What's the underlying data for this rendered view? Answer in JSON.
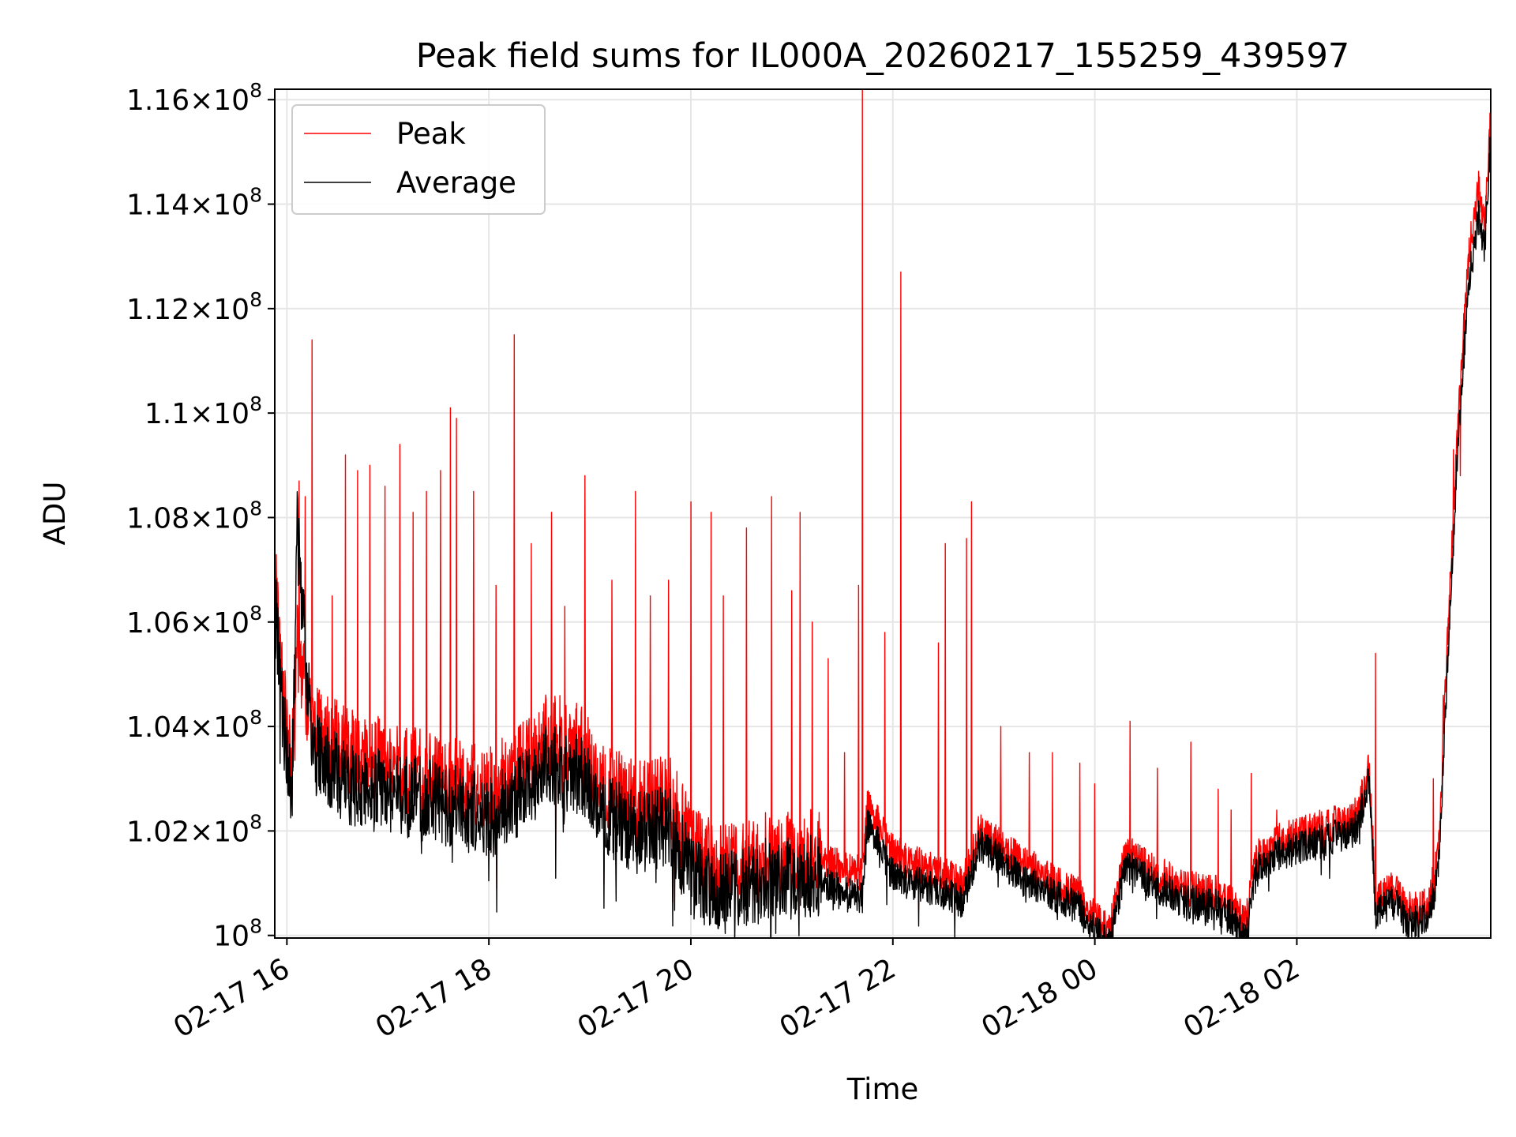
{
  "chart_data": {
    "type": "line",
    "title": "Peak field sums for IL000A_20260217_155259_439597",
    "xlabel": "Time",
    "ylabel": "ADU",
    "x_unit": "hours since 2026-02-17 00:00",
    "xlim": [
      15.88,
      27.92
    ],
    "ylim": [
      99.95,
      116.2
    ],
    "y_scale_note": "values in units of 1e6 ADU",
    "xticks": [
      {
        "value": 16,
        "label": "02-17 16"
      },
      {
        "value": 18,
        "label": "02-17 18"
      },
      {
        "value": 20,
        "label": "02-17 20"
      },
      {
        "value": 22,
        "label": "02-17 22"
      },
      {
        "value": 24,
        "label": "02-18 00"
      },
      {
        "value": 26,
        "label": "02-18 02"
      }
    ],
    "yticks": [
      {
        "value": 100,
        "mantissa": "",
        "exponent": "8"
      },
      {
        "value": 102,
        "mantissa": "1.02",
        "exponent": "8"
      },
      {
        "value": 104,
        "mantissa": "1.04",
        "exponent": "8"
      },
      {
        "value": 106,
        "mantissa": "1.06",
        "exponent": "8"
      },
      {
        "value": 108,
        "mantissa": "1.08",
        "exponent": "8"
      },
      {
        "value": 110,
        "mantissa": "1.1",
        "exponent": "8"
      },
      {
        "value": 112,
        "mantissa": "1.12",
        "exponent": "8"
      },
      {
        "value": 114,
        "mantissa": "1.14",
        "exponent": "8"
      },
      {
        "value": 116,
        "mantissa": "1.16",
        "exponent": "8"
      }
    ],
    "grid": true,
    "legend_position": "top-left",
    "series": [
      {
        "name": "Peak",
        "color": "#ff0000",
        "baseline": [
          [
            15.88,
            106.9
          ],
          [
            15.95,
            104.8
          ],
          [
            16.05,
            103.2
          ],
          [
            16.1,
            105.6
          ],
          [
            16.25,
            104.0
          ],
          [
            16.6,
            103.5
          ],
          [
            17.0,
            103.3
          ],
          [
            17.5,
            103.0
          ],
          [
            18.0,
            102.8
          ],
          [
            18.35,
            103.3
          ],
          [
            18.6,
            103.9
          ],
          [
            18.9,
            103.6
          ],
          [
            19.2,
            102.8
          ],
          [
            19.5,
            102.5
          ],
          [
            19.8,
            102.6
          ],
          [
            20.0,
            101.7
          ],
          [
            20.2,
            101.4
          ],
          [
            20.5,
            101.3
          ],
          [
            20.8,
            101.6
          ],
          [
            21.0,
            101.5
          ],
          [
            21.2,
            101.6
          ],
          [
            21.5,
            101.3
          ],
          [
            21.7,
            101.2
          ],
          [
            21.75,
            102.5
          ],
          [
            22.0,
            101.6
          ],
          [
            22.3,
            101.3
          ],
          [
            22.7,
            101.0
          ],
          [
            22.85,
            102.0
          ],
          [
            23.0,
            101.8
          ],
          [
            23.3,
            101.4
          ],
          [
            23.6,
            101.0
          ],
          [
            23.9,
            100.7
          ],
          [
            24.0,
            100.3
          ],
          [
            24.15,
            100.1
          ],
          [
            24.3,
            101.6
          ],
          [
            24.6,
            101.2
          ],
          [
            24.9,
            100.9
          ],
          [
            25.2,
            100.8
          ],
          [
            25.35,
            100.6
          ],
          [
            25.5,
            100.3
          ],
          [
            25.6,
            101.5
          ],
          [
            25.8,
            101.8
          ],
          [
            26.0,
            101.9
          ],
          [
            26.3,
            102.1
          ],
          [
            26.6,
            102.3
          ],
          [
            26.72,
            103.3
          ],
          [
            26.78,
            100.6
          ],
          [
            26.95,
            100.9
          ],
          [
            27.1,
            100.5
          ],
          [
            27.3,
            100.6
          ],
          [
            27.4,
            101.5
          ],
          [
            27.5,
            106.0
          ],
          [
            27.6,
            110.0
          ],
          [
            27.7,
            113.0
          ],
          [
            27.8,
            114.3
          ],
          [
            27.86,
            113.6
          ],
          [
            27.92,
            115.8
          ]
        ],
        "spikes": [
          [
            16.12,
            108.7
          ],
          [
            16.18,
            108.4
          ],
          [
            16.25,
            111.4
          ],
          [
            16.45,
            106.5
          ],
          [
            16.58,
            109.2
          ],
          [
            16.7,
            108.9
          ],
          [
            16.82,
            109.0
          ],
          [
            16.97,
            108.6
          ],
          [
            17.12,
            109.4
          ],
          [
            17.25,
            108.1
          ],
          [
            17.38,
            108.5
          ],
          [
            17.52,
            108.9
          ],
          [
            17.62,
            110.1
          ],
          [
            17.68,
            109.9
          ],
          [
            17.85,
            108.5
          ],
          [
            18.07,
            106.7
          ],
          [
            18.25,
            111.5
          ],
          [
            18.42,
            107.5
          ],
          [
            18.62,
            108.1
          ],
          [
            18.75,
            106.3
          ],
          [
            18.95,
            108.8
          ],
          [
            19.22,
            106.8
          ],
          [
            19.45,
            108.5
          ],
          [
            19.6,
            106.5
          ],
          [
            19.78,
            106.8
          ],
          [
            20.0,
            108.3
          ],
          [
            20.2,
            108.1
          ],
          [
            20.32,
            106.5
          ],
          [
            20.55,
            107.8
          ],
          [
            20.8,
            108.4
          ],
          [
            21.0,
            106.6
          ],
          [
            21.08,
            108.1
          ],
          [
            21.2,
            106.0
          ],
          [
            21.36,
            105.3
          ],
          [
            21.52,
            103.5
          ],
          [
            21.66,
            106.7
          ],
          [
            21.7,
            116.2
          ],
          [
            21.92,
            105.8
          ],
          [
            22.08,
            112.7
          ],
          [
            22.45,
            105.6
          ],
          [
            22.52,
            107.5
          ],
          [
            22.73,
            107.6
          ],
          [
            22.78,
            108.3
          ],
          [
            23.07,
            104.0
          ],
          [
            23.35,
            103.5
          ],
          [
            23.58,
            103.5
          ],
          [
            23.85,
            103.3
          ],
          [
            24.0,
            102.9
          ],
          [
            24.35,
            104.1
          ],
          [
            24.62,
            103.2
          ],
          [
            24.95,
            103.7
          ],
          [
            25.22,
            102.8
          ],
          [
            25.35,
            102.4
          ],
          [
            25.55,
            103.1
          ],
          [
            25.8,
            102.4
          ],
          [
            26.78,
            105.4
          ],
          [
            27.35,
            103.0
          ],
          [
            27.45,
            104.6
          ],
          [
            27.55,
            109.3
          ],
          [
            27.62,
            108.8
          ]
        ]
      },
      {
        "name": "Average",
        "color": "#000000",
        "baseline": [
          [
            15.88,
            106.5
          ],
          [
            15.95,
            104.4
          ],
          [
            16.05,
            102.7
          ],
          [
            16.1,
            107.9
          ],
          [
            16.25,
            103.6
          ],
          [
            16.6,
            102.9
          ],
          [
            17.0,
            102.8
          ],
          [
            17.5,
            102.6
          ],
          [
            18.0,
            102.3
          ],
          [
            18.35,
            102.8
          ],
          [
            18.6,
            103.4
          ],
          [
            18.9,
            103.1
          ],
          [
            19.2,
            102.3
          ],
          [
            19.5,
            102.0
          ],
          [
            19.8,
            102.1
          ],
          [
            20.0,
            101.2
          ],
          [
            20.2,
            100.9
          ],
          [
            20.5,
            100.9
          ],
          [
            20.8,
            101.2
          ],
          [
            21.0,
            101.1
          ],
          [
            21.2,
            101.2
          ],
          [
            21.5,
            100.9
          ],
          [
            21.7,
            100.8
          ],
          [
            21.75,
            102.2
          ],
          [
            22.0,
            101.2
          ],
          [
            22.3,
            101.0
          ],
          [
            22.7,
            100.7
          ],
          [
            22.85,
            101.8
          ],
          [
            23.0,
            101.6
          ],
          [
            23.3,
            101.1
          ],
          [
            23.6,
            100.8
          ],
          [
            23.9,
            100.5
          ],
          [
            24.0,
            100.1
          ],
          [
            24.15,
            99.9
          ],
          [
            24.3,
            101.4
          ],
          [
            24.6,
            101.0
          ],
          [
            24.9,
            100.7
          ],
          [
            25.2,
            100.6
          ],
          [
            25.35,
            100.4
          ],
          [
            25.5,
            100.0
          ],
          [
            25.6,
            101.3
          ],
          [
            25.8,
            101.6
          ],
          [
            26.0,
            101.7
          ],
          [
            26.3,
            101.9
          ],
          [
            26.6,
            102.1
          ],
          [
            26.72,
            103.1
          ],
          [
            26.78,
            100.4
          ],
          [
            26.95,
            100.7
          ],
          [
            27.1,
            100.3
          ],
          [
            27.3,
            100.4
          ],
          [
            27.4,
            101.2
          ],
          [
            27.5,
            105.5
          ],
          [
            27.6,
            109.6
          ],
          [
            27.7,
            112.5
          ],
          [
            27.8,
            113.8
          ],
          [
            27.86,
            113.2
          ],
          [
            27.92,
            115.4
          ]
        ]
      }
    ]
  }
}
